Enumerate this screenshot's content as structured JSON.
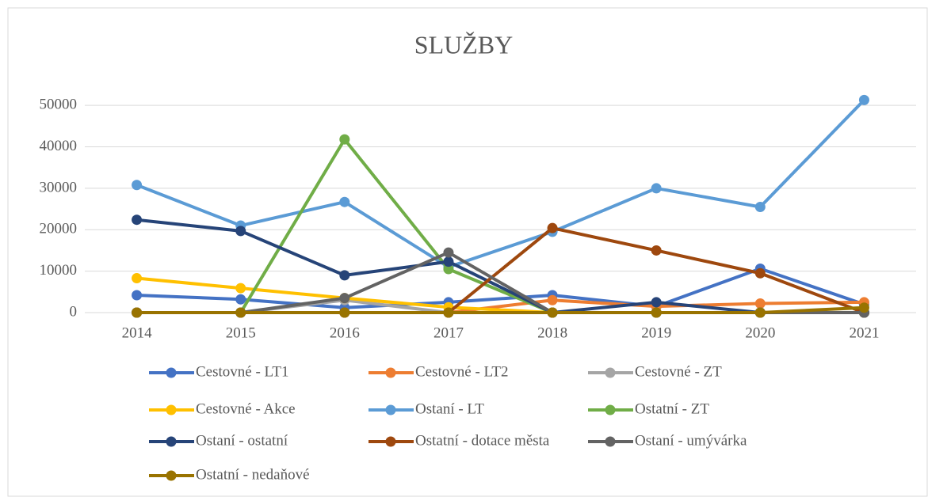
{
  "chart_data": {
    "type": "line",
    "title": "SLUŽBY",
    "categories": [
      "2014",
      "2015",
      "2016",
      "2017",
      "2018",
      "2019",
      "2020",
      "2021"
    ],
    "ylim": [
      0,
      55000
    ],
    "yticks": [
      0,
      10000,
      20000,
      30000,
      40000,
      50000
    ],
    "grid": true,
    "series": [
      {
        "name": "Cestovné - LT1",
        "color": "#4472c4",
        "values": [
          4200,
          3200,
          1200,
          2500,
          4200,
          1500,
          10600,
          2000
        ]
      },
      {
        "name": "Cestovné - LT2",
        "color": "#ed7d31",
        "values": [
          0,
          0,
          0,
          0,
          3000,
          1500,
          2200,
          2500
        ]
      },
      {
        "name": "Cestovné - ZT",
        "color": "#a5a5a5",
        "values": [
          0,
          0,
          3000,
          0,
          0,
          0,
          0,
          0
        ]
      },
      {
        "name": "Cestovné - Akce",
        "color": "#ffc000",
        "values": [
          8300,
          5900,
          3500,
          1300,
          0,
          0,
          0,
          0
        ]
      },
      {
        "name": "Ostaní - LT",
        "color": "#5b9bd5",
        "values": [
          30800,
          21000,
          26700,
          11000,
          19500,
          30000,
          25500,
          51300
        ]
      },
      {
        "name": "Ostatní - ZT",
        "color": "#70ad47",
        "values": [
          0,
          0,
          41800,
          10500,
          0,
          0,
          0,
          0
        ]
      },
      {
        "name": "Ostaní - ostatní",
        "color": "#264478",
        "values": [
          22400,
          19700,
          9000,
          12300,
          0,
          2500,
          0,
          0
        ]
      },
      {
        "name": "Ostatní - dotace města",
        "color": "#9e480e",
        "values": [
          0,
          0,
          0,
          0,
          20400,
          15000,
          9500,
          0
        ]
      },
      {
        "name": "Ostaní - umývárka",
        "color": "#636363",
        "values": [
          0,
          0,
          3500,
          14500,
          0,
          0,
          0,
          0
        ]
      },
      {
        "name": "Ostatní - nedaňové",
        "color": "#997300",
        "values": [
          0,
          0,
          0,
          0,
          0,
          0,
          0,
          1200
        ]
      }
    ]
  }
}
